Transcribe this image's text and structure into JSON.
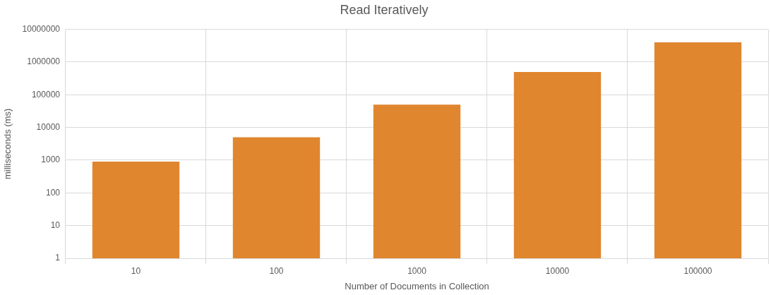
{
  "chart_data": {
    "type": "bar",
    "title": "Read Iteratively",
    "xlabel": "Number of Documents in Collection",
    "ylabel": "milliseconds (ms)",
    "categories": [
      "10",
      "100",
      "1000",
      "10000",
      "100000"
    ],
    "values": [
      900,
      5000,
      50000,
      500000,
      4000000
    ],
    "color": "#e0862f",
    "log": "y",
    "ylim": [
      1,
      10000000
    ],
    "yticks": [
      1,
      10,
      100,
      1000,
      10000,
      100000,
      1000000,
      10000000
    ],
    "grid": true,
    "legend": false
  }
}
